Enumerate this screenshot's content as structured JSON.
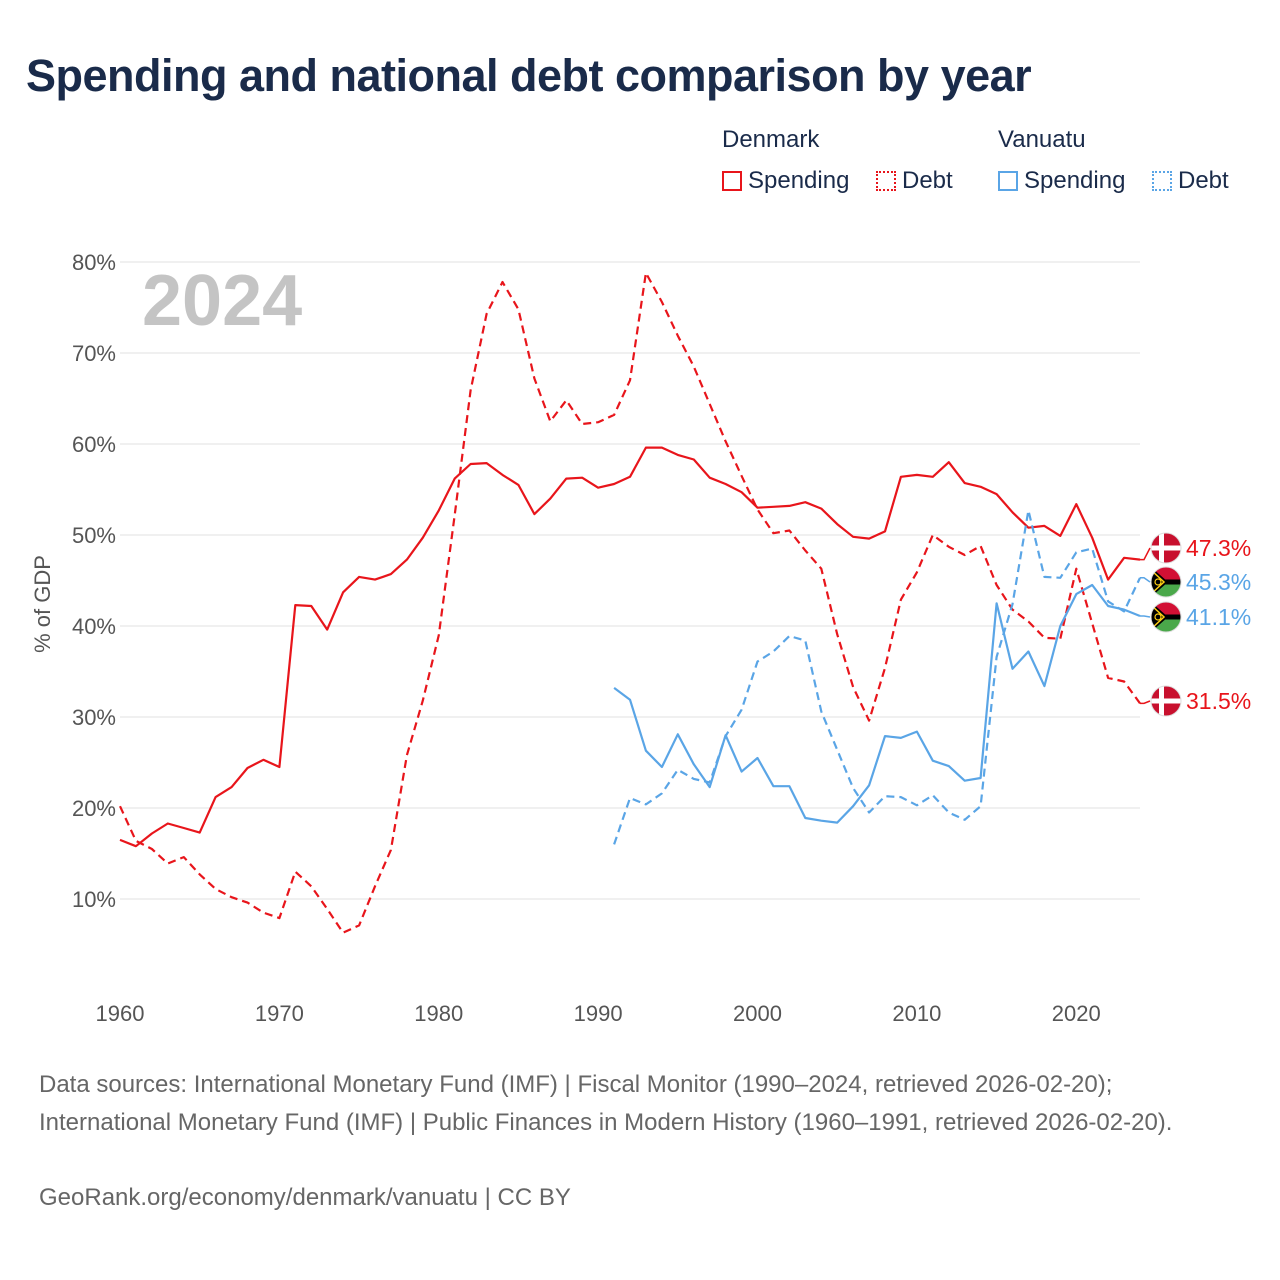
{
  "title": "Spending and national debt comparison by year",
  "legend": {
    "groups": [
      {
        "name": "Denmark",
        "spending_label": "Spending",
        "debt_label": "Debt",
        "color": "#e8151b"
      },
      {
        "name": "Vanuatu",
        "spending_label": "Spending",
        "debt_label": "Debt",
        "color": "#5aa5e6"
      }
    ]
  },
  "year_label": "2024",
  "sources": "Data sources: International Monetary Fund (IMF) | Fiscal Monitor (1990–2024, retrieved 2026-02-20); International Monetary Fund (IMF) | Public Finances in Modern History (1960–1991, retrieved 2026-02-20).",
  "footer": "GeoRank.org/economy/denmark/vanuatu | CC BY",
  "chart_data": {
    "type": "line",
    "title": "Spending and national debt comparison by year",
    "xlabel": "",
    "ylabel": "% of GDP",
    "xlim": [
      1960,
      2024
    ],
    "ylim": [
      0,
      80
    ],
    "x_ticks": [
      1960,
      1970,
      1980,
      1990,
      2000,
      2010,
      2020
    ],
    "x_tick_labels": [
      "1960",
      "1970",
      "1980",
      "1990",
      "2000",
      "2010",
      "2020"
    ],
    "y_ticks": [
      10,
      20,
      30,
      40,
      50,
      60,
      70,
      80
    ],
    "y_tick_labels": [
      "10%",
      "20%",
      "30%",
      "40%",
      "50%",
      "60%",
      "70%",
      "80%"
    ],
    "series": [
      {
        "name": "Denmark Spending",
        "country": "Denmark",
        "style": "solid",
        "color": "#e8151b",
        "x": [
          1960,
          1961,
          1962,
          1963,
          1964,
          1965,
          1966,
          1967,
          1968,
          1969,
          1970,
          1971,
          1972,
          1973,
          1974,
          1975,
          1976,
          1977,
          1978,
          1979,
          1980,
          1981,
          1982,
          1983,
          1984,
          1985,
          1986,
          1987,
          1988,
          1989,
          1990,
          1991,
          1992,
          1993,
          1994,
          1995,
          1996,
          1997,
          1998,
          1999,
          2000,
          2001,
          2002,
          2003,
          2004,
          2005,
          2006,
          2007,
          2008,
          2009,
          2010,
          2011,
          2012,
          2013,
          2014,
          2015,
          2016,
          2017,
          2018,
          2019,
          2020,
          2021,
          2022,
          2023,
          2024
        ],
        "values": [
          16.5,
          15.8,
          17.2,
          18.3,
          17.8,
          17.3,
          21.2,
          22.3,
          24.4,
          25.3,
          24.5,
          42.3,
          42.2,
          39.6,
          43.7,
          45.4,
          45.1,
          45.7,
          47.3,
          49.7,
          52.7,
          56.2,
          57.8,
          57.9,
          56.6,
          55.5,
          52.3,
          54.0,
          56.2,
          56.3,
          55.2,
          55.6,
          56.4,
          59.6,
          59.6,
          58.8,
          58.3,
          56.3,
          55.6,
          54.7,
          53.0,
          53.1,
          53.2,
          53.6,
          52.9,
          51.2,
          49.8,
          49.6,
          50.4,
          56.4,
          56.6,
          56.4,
          58.0,
          55.7,
          55.3,
          54.5,
          52.5,
          50.8,
          51.0,
          49.9,
          53.4,
          49.7,
          45.1,
          47.5,
          47.3
        ],
        "end_label": "47.3%"
      },
      {
        "name": "Denmark Debt",
        "country": "Denmark",
        "style": "dashed",
        "color": "#e8151b",
        "x": [
          1960,
          1961,
          1962,
          1963,
          1964,
          1965,
          1966,
          1967,
          1968,
          1969,
          1970,
          1971,
          1972,
          1973,
          1974,
          1975,
          1976,
          1977,
          1978,
          1979,
          1980,
          1981,
          1982,
          1983,
          1984,
          1985,
          1986,
          1987,
          1988,
          1989,
          1990,
          1991,
          1992,
          1993,
          1994,
          1995,
          1996,
          1997,
          1998,
          1999,
          2000,
          2001,
          2002,
          2003,
          2004,
          2005,
          2006,
          2007,
          2008,
          2009,
          2010,
          2011,
          2012,
          2013,
          2014,
          2015,
          2016,
          2017,
          2018,
          2019,
          2020,
          2021,
          2022,
          2023,
          2024
        ],
        "values": [
          20.2,
          16.4,
          15.5,
          13.9,
          14.6,
          12.7,
          11.1,
          10.2,
          9.6,
          8.5,
          7.9,
          13.0,
          11.4,
          8.9,
          6.3,
          7.1,
          11.4,
          15.4,
          25.8,
          31.8,
          39.0,
          52.2,
          65.9,
          74.3,
          77.8,
          74.8,
          67.2,
          62.5,
          64.8,
          62.2,
          62.4,
          63.2,
          67.0,
          78.8,
          75.6,
          71.9,
          68.5,
          64.4,
          60.3,
          56.5,
          52.8,
          50.2,
          50.5,
          48.3,
          46.3,
          39.1,
          33.3,
          29.6,
          35.4,
          42.9,
          45.9,
          50.0,
          48.7,
          47.8,
          48.8,
          44.5,
          41.8,
          40.5,
          38.7,
          38.6,
          46.3,
          40.3,
          34.3,
          33.9,
          31.5
        ],
        "end_label": "31.5%"
      },
      {
        "name": "Vanuatu Spending",
        "country": "Vanuatu",
        "style": "solid",
        "color": "#5aa5e6",
        "x": [
          1991,
          1992,
          1993,
          1994,
          1995,
          1996,
          1997,
          1998,
          1999,
          2000,
          2001,
          2002,
          2003,
          2004,
          2005,
          2006,
          2007,
          2008,
          2009,
          2010,
          2011,
          2012,
          2013,
          2014,
          2015,
          2016,
          2017,
          2018,
          2019,
          2020,
          2021,
          2022,
          2023,
          2024
        ],
        "values": [
          33.2,
          31.9,
          26.3,
          24.5,
          28.1,
          24.8,
          22.3,
          28.0,
          24.0,
          25.5,
          22.4,
          22.4,
          18.9,
          18.6,
          18.4,
          20.2,
          22.5,
          27.9,
          27.7,
          28.4,
          25.2,
          24.6,
          23.0,
          23.3,
          42.5,
          35.3,
          37.2,
          33.4,
          40.0,
          43.5,
          44.5,
          42.2,
          41.8,
          41.1
        ],
        "end_label": "41.1%"
      },
      {
        "name": "Vanuatu Debt",
        "country": "Vanuatu",
        "style": "dashed",
        "color": "#5aa5e6",
        "x": [
          1991,
          1992,
          1993,
          1994,
          1995,
          1996,
          1997,
          1998,
          1999,
          2000,
          2001,
          2002,
          2003,
          2004,
          2005,
          2006,
          2007,
          2008,
          2009,
          2010,
          2011,
          2012,
          2013,
          2014,
          2015,
          2016,
          2017,
          2018,
          2019,
          2020,
          2021,
          2022,
          2023,
          2024
        ],
        "values": [
          16.0,
          21.1,
          20.4,
          21.6,
          24.2,
          23.2,
          22.8,
          27.9,
          30.8,
          36.1,
          37.2,
          38.9,
          38.4,
          30.6,
          26.4,
          22.2,
          19.5,
          21.3,
          21.2,
          20.3,
          21.4,
          19.5,
          18.7,
          20.2,
          36.6,
          42.4,
          52.7,
          45.4,
          45.3,
          48.1,
          48.5,
          42.7,
          41.6,
          45.3
        ],
        "end_label": "45.3%"
      }
    ]
  }
}
